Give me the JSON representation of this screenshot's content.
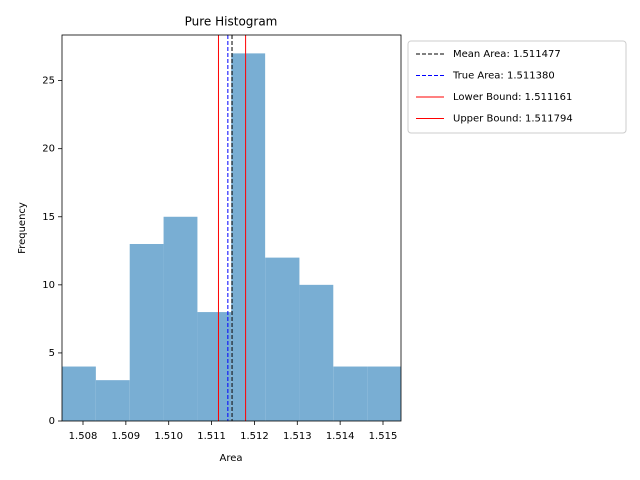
{
  "chart_data": {
    "type": "histogram",
    "title": "Pure Histogram",
    "x_label": "Area",
    "y_label": "Frequency",
    "bins": [
      1.50751,
      1.5083,
      1.50909,
      1.50988,
      1.51067,
      1.51146,
      1.51225,
      1.51305,
      1.51384,
      1.51463,
      1.51542
    ],
    "values": [
      4,
      3,
      13,
      15,
      8,
      27,
      12,
      10,
      4,
      4
    ],
    "color": "#79aed3",
    "xlim": [
      1.50751,
      1.51542
    ],
    "ylim": [
      0,
      28.35
    ],
    "xticks": [
      1.508,
      1.509,
      {
        "value": 1.51,
        "label": "1.510"
      },
      1.511,
      1.512,
      1.513,
      1.514,
      1.515
    ],
    "yticks": [
      0,
      5,
      10,
      15,
      20,
      25
    ],
    "vlines": [
      {
        "label": "Mean Area: 1.511477",
        "value": 1.511477,
        "color": "#000000",
        "dashed": true
      },
      {
        "label": "True Area: 1.511380",
        "value": 1.51138,
        "color": "#0000ff",
        "dashed": true
      },
      {
        "label": "Lower Bound: 1.511161",
        "value": 1.511161,
        "color": "#ff0000",
        "dashed": false
      },
      {
        "label": "Upper Bound: 1.511794",
        "value": 1.511794,
        "color": "#ff0000",
        "dashed": false
      }
    ],
    "legend": "outside-upper-right"
  }
}
